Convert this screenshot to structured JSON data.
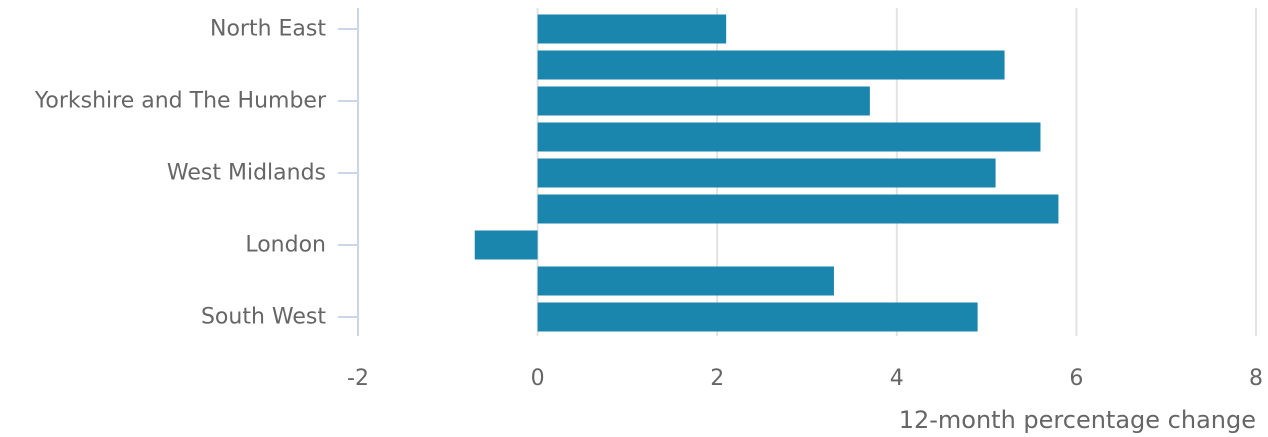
{
  "chart_data": {
    "type": "bar",
    "orientation": "horizontal",
    "title": "",
    "xlabel": "12-month percentage change",
    "ylabel": "",
    "xlim": [
      -2,
      8
    ],
    "xticks": [
      -2,
      0,
      2,
      4,
      6,
      8
    ],
    "grid": "vertical",
    "legend": "none",
    "bar_color": "#1a86ad",
    "categories": [
      "North East",
      "",
      "Yorkshire and The Humber",
      "",
      "West Midlands",
      "",
      "London",
      "",
      "South West"
    ],
    "values": [
      2.1,
      5.2,
      3.7,
      5.6,
      5.1,
      5.8,
      -0.7,
      3.3,
      4.9
    ]
  }
}
